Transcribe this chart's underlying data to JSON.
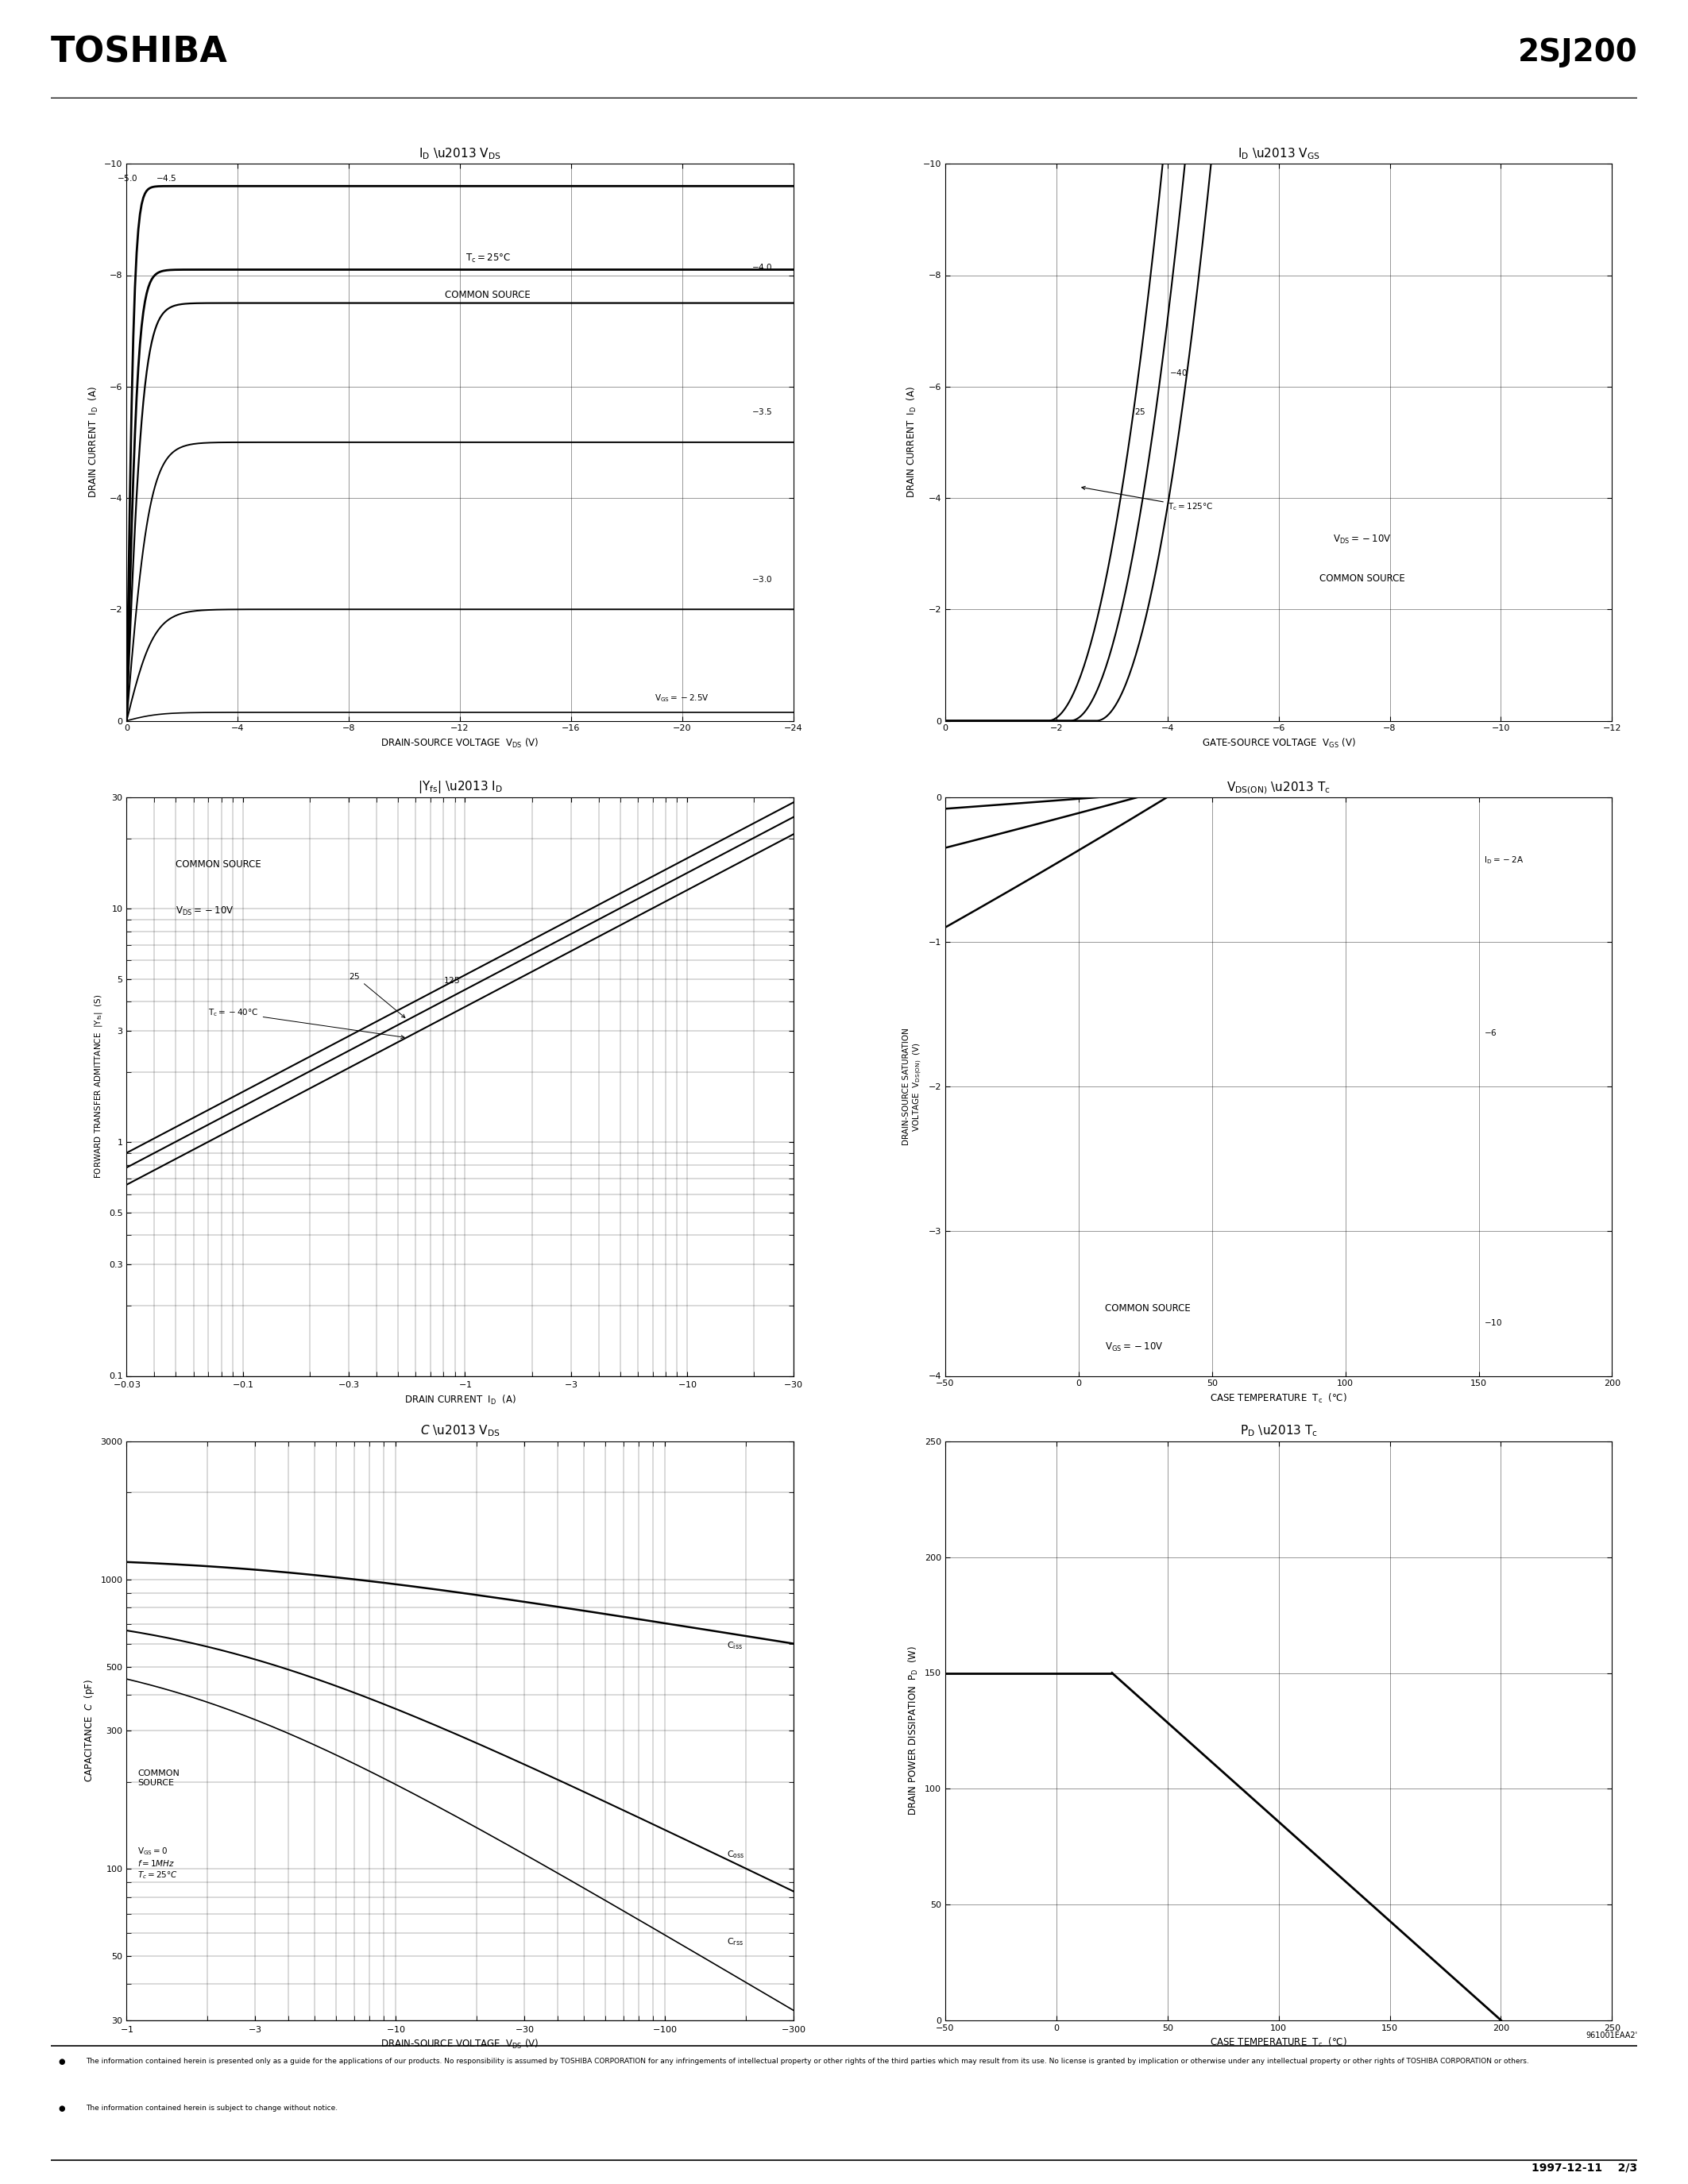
{
  "page_title_left": "TOSHIBA",
  "page_title_right": "2SJ200",
  "footer_ref": "961001EAA2'",
  "footer_date": "1997-12-11",
  "footer_page": "2/3",
  "footer_text1": "The information contained herein is presented only as a guide for the applications of our products. No responsibility is assumed by TOSHIBA CORPORATION for any infringements of intellectual property or other rights of the third parties which may result from its use. No license is granted by implication or otherwise under any intellectual property or other rights of TOSHIBA CORPORATION or others.",
  "footer_text2": "The information contained herein is subject to change without notice.",
  "bg_color": "#ffffff"
}
